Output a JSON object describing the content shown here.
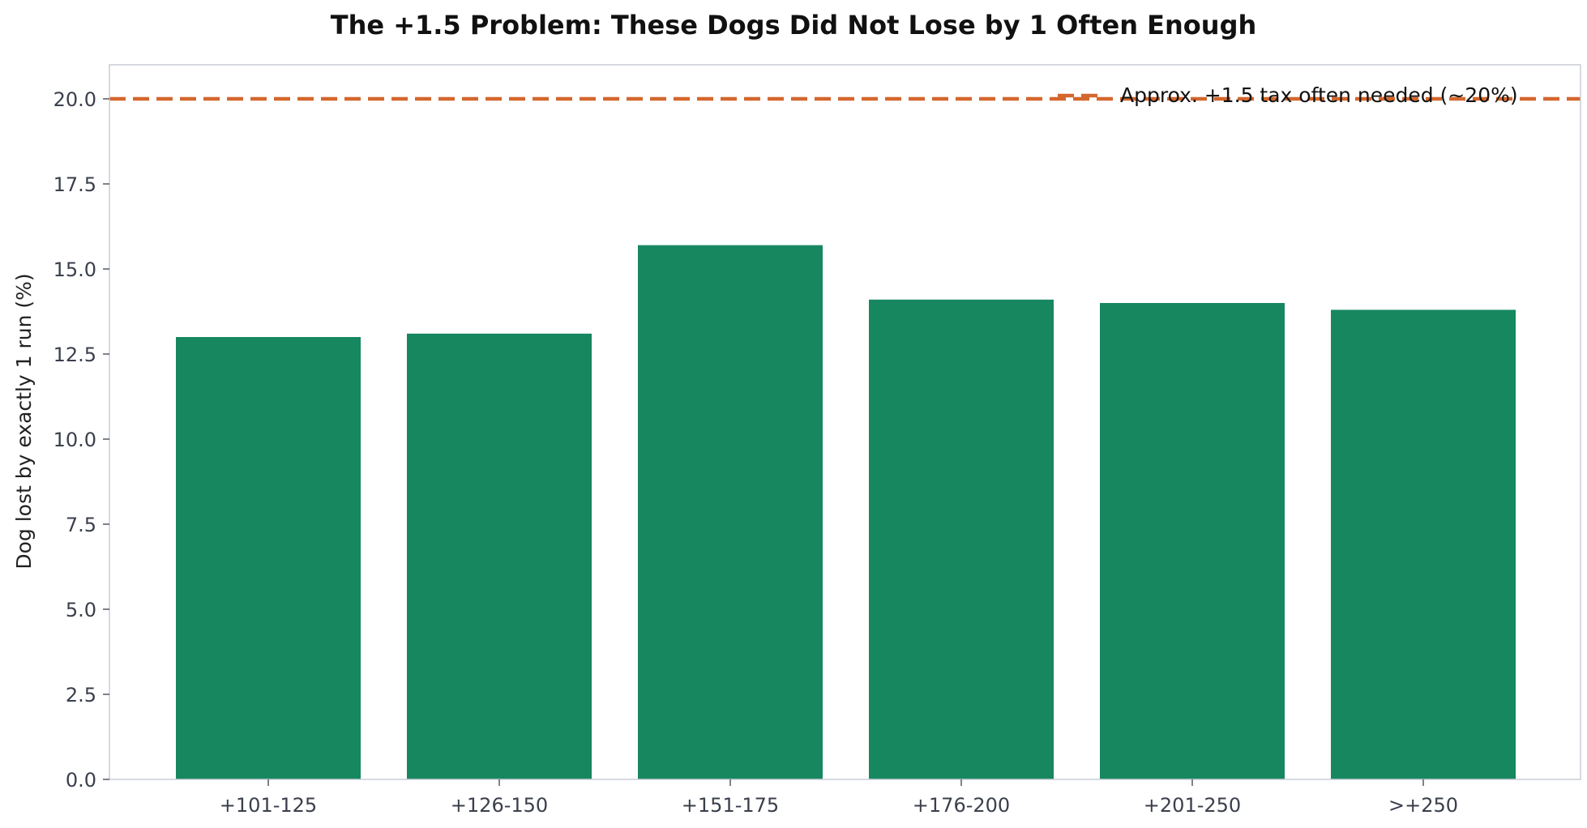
{
  "chart_data": {
    "type": "bar",
    "title": "The +1.5 Problem: These Dogs Did Not Lose by 1 Often Enough",
    "xlabel": "",
    "ylabel": "Dog lost by exactly 1 run (%)",
    "categories": [
      "+101-125",
      "+126-150",
      "+151-175",
      "+176-200",
      "+201-250",
      ">+250"
    ],
    "values": [
      13.0,
      13.1,
      15.7,
      14.1,
      14.0,
      13.8
    ],
    "ylim": [
      0,
      21
    ],
    "yticks": [
      0.0,
      2.5,
      5.0,
      7.5,
      10.0,
      12.5,
      15.0,
      17.5,
      20.0
    ],
    "ytick_labels": [
      "0.0",
      "2.5",
      "5.0",
      "7.5",
      "10.0",
      "12.5",
      "15.0",
      "17.5",
      "20.0"
    ],
    "reference_line": {
      "value": 20.0,
      "label": "Approx. +1.5 tax often needed (~20%)",
      "style": "dashed"
    },
    "legend": {
      "placement": "top-right",
      "entries": [
        "Approx. +1.5 tax often needed (~20%)"
      ]
    },
    "grid": false,
    "colors": {
      "bar": "#178760",
      "reference_line": "#d4672d",
      "axes": "#c8cdd6",
      "tick_text": "#3a3f4b"
    }
  }
}
